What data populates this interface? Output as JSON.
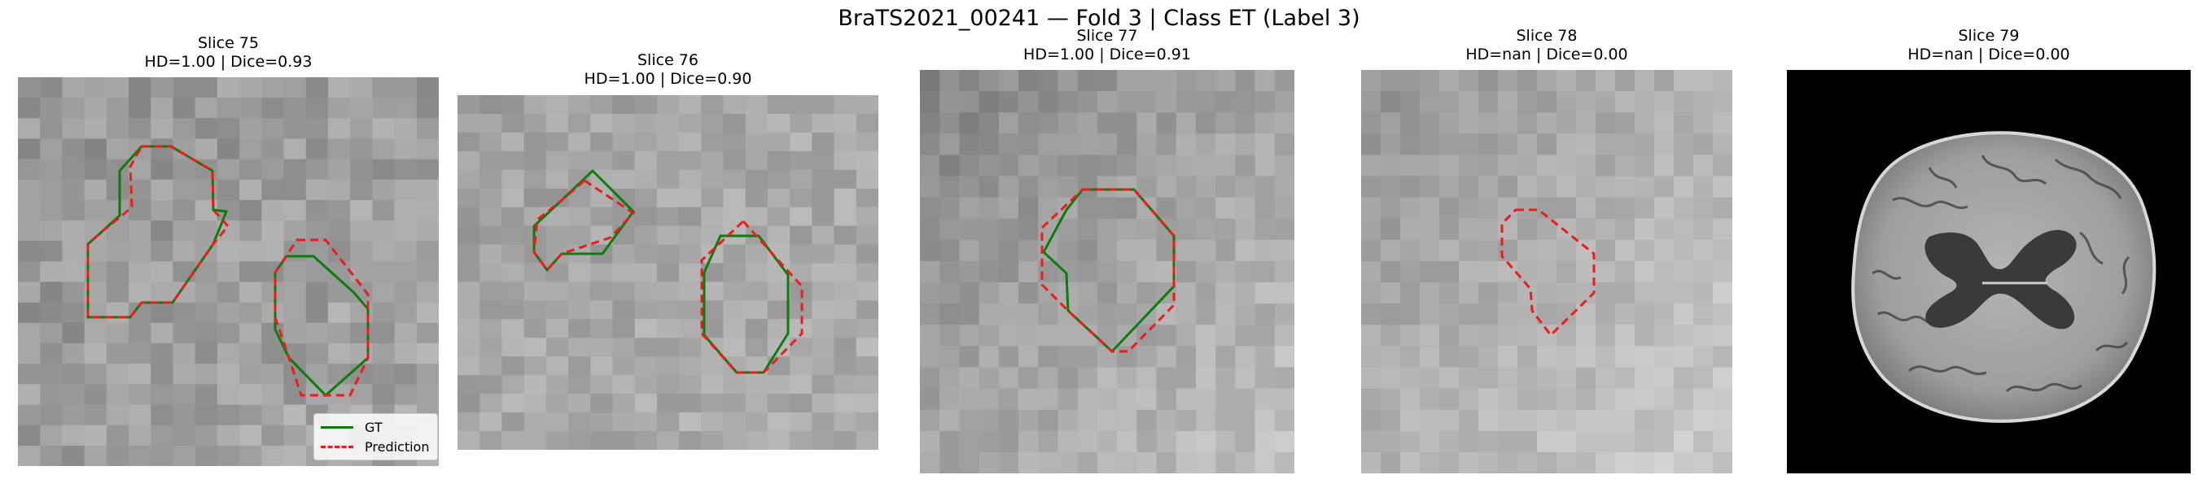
{
  "figure": {
    "suptitle": "BraTS2021_00241 — Fold 3 | Class ET (Label 3)"
  },
  "panels": [
    {
      "slice": "Slice 75",
      "metrics": "HD=1.00 | Dice=0.93"
    },
    {
      "slice": "Slice 76",
      "metrics": "HD=1.00 | Dice=0.90"
    },
    {
      "slice": "Slice 77",
      "metrics": "HD=1.00 | Dice=0.91"
    },
    {
      "slice": "Slice 78",
      "metrics": "HD=nan | Dice=0.00"
    },
    {
      "slice": "Slice 79",
      "metrics": "HD=nan | Dice=0.00"
    }
  ],
  "legend": {
    "gt_label": "GT",
    "pred_label": "Prediction"
  },
  "colors": {
    "gt_contour": "#0a7d0a",
    "prediction_contour": "#ee1b1b",
    "background": "#000000"
  }
}
